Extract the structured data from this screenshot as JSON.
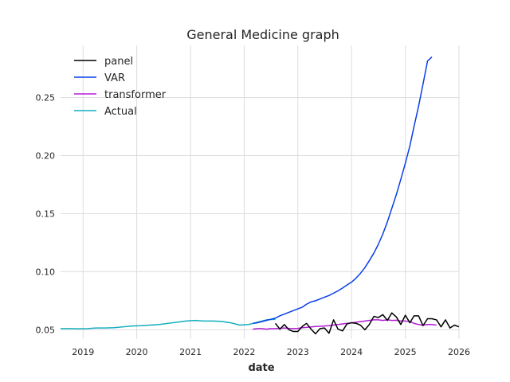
{
  "chart_data": {
    "type": "line",
    "title": "General Medicine graph",
    "xlabel": "date",
    "ylabel": "",
    "xlim": [
      "2018-08-01",
      "2026-01-01"
    ],
    "ylim": [
      0.042,
      0.295
    ],
    "x_ticks": [
      {
        "date": "2019-01-01",
        "label": "2019"
      },
      {
        "date": "2020-01-01",
        "label": "2020"
      },
      {
        "date": "2021-01-01",
        "label": "2021"
      },
      {
        "date": "2022-01-01",
        "label": "2022"
      },
      {
        "date": "2023-01-01",
        "label": "2023"
      },
      {
        "date": "2024-01-01",
        "label": "2024"
      },
      {
        "date": "2025-01-01",
        "label": "2025"
      },
      {
        "date": "2026-01-01",
        "label": "2026"
      }
    ],
    "y_ticks": [
      {
        "value": 0.05,
        "label": "0.05"
      },
      {
        "value": 0.1,
        "label": "0.10"
      },
      {
        "value": 0.15,
        "label": "0.15"
      },
      {
        "value": 0.2,
        "label": "0.20"
      },
      {
        "value": 0.25,
        "label": "0.25"
      }
    ],
    "grid": true,
    "legend_position": "top-left",
    "series": [
      {
        "name": "panel",
        "color": "#000000",
        "points": [
          [
            "2022-08",
            0.0555
          ],
          [
            "2022-09",
            0.0505
          ],
          [
            "2022-10",
            0.0545
          ],
          [
            "2022-11",
            0.05
          ],
          [
            "2022-12",
            0.0485
          ],
          [
            "2023-01",
            0.0485
          ],
          [
            "2023-02",
            0.053
          ],
          [
            "2023-03",
            0.0555
          ],
          [
            "2023-04",
            0.0505
          ],
          [
            "2023-05",
            0.0465
          ],
          [
            "2023-06",
            0.051
          ],
          [
            "2023-07",
            0.0515
          ],
          [
            "2023-08",
            0.047
          ],
          [
            "2023-09",
            0.0585
          ],
          [
            "2023-10",
            0.0505
          ],
          [
            "2023-11",
            0.049
          ],
          [
            "2023-12",
            0.055
          ],
          [
            "2024-01",
            0.056
          ],
          [
            "2024-02",
            0.0555
          ],
          [
            "2024-03",
            0.054
          ],
          [
            "2024-04",
            0.05
          ],
          [
            "2024-05",
            0.0545
          ],
          [
            "2024-06",
            0.0615
          ],
          [
            "2024-07",
            0.0605
          ],
          [
            "2024-08",
            0.063
          ],
          [
            "2024-09",
            0.058
          ],
          [
            "2024-10",
            0.0645
          ],
          [
            "2024-11",
            0.061
          ],
          [
            "2024-12",
            0.0545
          ],
          [
            "2025-01",
            0.0625
          ],
          [
            "2025-02",
            0.056
          ],
          [
            "2025-03",
            0.062
          ],
          [
            "2025-04",
            0.062
          ],
          [
            "2025-05",
            0.0535
          ],
          [
            "2025-06",
            0.0595
          ],
          [
            "2025-07",
            0.0595
          ],
          [
            "2025-08",
            0.0585
          ],
          [
            "2025-09",
            0.0525
          ],
          [
            "2025-10",
            0.0585
          ],
          [
            "2025-11",
            0.0515
          ],
          [
            "2025-12",
            0.054
          ],
          [
            "2026-01",
            0.0525
          ]
        ]
      },
      {
        "name": "VAR",
        "color": "#0a3ee8",
        "points": [
          [
            "2022-03",
            0.0555
          ],
          [
            "2022-04",
            0.056
          ],
          [
            "2022-05",
            0.057
          ],
          [
            "2022-06",
            0.058
          ],
          [
            "2022-07",
            0.059
          ],
          [
            "2022-08",
            0.06
          ],
          [
            "2022-09",
            0.062
          ],
          [
            "2022-10",
            0.0635
          ],
          [
            "2022-11",
            0.065
          ],
          [
            "2022-12",
            0.0665
          ],
          [
            "2023-01",
            0.068
          ],
          [
            "2023-02",
            0.0695
          ],
          [
            "2023-03",
            0.072
          ],
          [
            "2023-04",
            0.074
          ],
          [
            "2023-05",
            0.075
          ],
          [
            "2023-06",
            0.0765
          ],
          [
            "2023-07",
            0.078
          ],
          [
            "2023-08",
            0.0795
          ],
          [
            "2023-09",
            0.0815
          ],
          [
            "2023-10",
            0.0835
          ],
          [
            "2023-11",
            0.086
          ],
          [
            "2023-12",
            0.0885
          ],
          [
            "2024-01",
            0.091
          ],
          [
            "2024-02",
            0.0945
          ],
          [
            "2024-03",
            0.0985
          ],
          [
            "2024-04",
            0.1035
          ],
          [
            "2024-05",
            0.1095
          ],
          [
            "2024-06",
            0.116
          ],
          [
            "2024-07",
            0.1235
          ],
          [
            "2024-08",
            0.1325
          ],
          [
            "2024-09",
            0.143
          ],
          [
            "2024-10",
            0.1545
          ],
          [
            "2024-11",
            0.1665
          ],
          [
            "2024-12",
            0.1795
          ],
          [
            "2025-01",
            0.1935
          ],
          [
            "2025-02",
            0.2085
          ],
          [
            "2025-03",
            0.225
          ],
          [
            "2025-04",
            0.2425
          ],
          [
            "2025-05",
            0.2615
          ],
          [
            "2025-06",
            0.2815
          ],
          [
            "2025-07",
            0.285
          ]
        ]
      },
      {
        "name": "transformer",
        "color": "#b51ad6",
        "points": [
          [
            "2022-03",
            0.0505
          ],
          [
            "2022-04",
            0.051
          ],
          [
            "2022-05",
            0.051
          ],
          [
            "2022-06",
            0.0505
          ],
          [
            "2022-07",
            0.051
          ],
          [
            "2022-08",
            0.051
          ],
          [
            "2022-09",
            0.0512
          ],
          [
            "2022-10",
            0.0515
          ],
          [
            "2022-11",
            0.0512
          ],
          [
            "2022-12",
            0.051
          ],
          [
            "2023-01",
            0.0512
          ],
          [
            "2023-02",
            0.0518
          ],
          [
            "2023-03",
            0.052
          ],
          [
            "2023-04",
            0.0525
          ],
          [
            "2023-05",
            0.0528
          ],
          [
            "2023-06",
            0.053
          ],
          [
            "2023-07",
            0.0532
          ],
          [
            "2023-08",
            0.0535
          ],
          [
            "2023-09",
            0.054
          ],
          [
            "2023-10",
            0.0545
          ],
          [
            "2023-11",
            0.055
          ],
          [
            "2023-12",
            0.0555
          ],
          [
            "2024-01",
            0.056
          ],
          [
            "2024-02",
            0.0565
          ],
          [
            "2024-03",
            0.057
          ],
          [
            "2024-04",
            0.0575
          ],
          [
            "2024-05",
            0.058
          ],
          [
            "2024-06",
            0.0585
          ],
          [
            "2024-07",
            0.0585
          ],
          [
            "2024-08",
            0.058
          ],
          [
            "2024-09",
            0.0585
          ],
          [
            "2024-10",
            0.058
          ],
          [
            "2024-11",
            0.0582
          ],
          [
            "2024-12",
            0.0575
          ],
          [
            "2025-01",
            0.0575
          ],
          [
            "2025-02",
            0.057
          ],
          [
            "2025-03",
            0.0555
          ],
          [
            "2025-04",
            0.0545
          ],
          [
            "2025-05",
            0.054
          ],
          [
            "2025-06",
            0.0545
          ],
          [
            "2025-07",
            0.0545
          ],
          [
            "2025-08",
            0.054
          ]
        ]
      },
      {
        "name": "Actual",
        "color": "#11aebd",
        "points": [
          [
            "2018-08",
            0.051
          ],
          [
            "2018-10",
            0.051
          ],
          [
            "2018-12",
            0.0508
          ],
          [
            "2019-02",
            0.051
          ],
          [
            "2019-04",
            0.0515
          ],
          [
            "2019-06",
            0.0515
          ],
          [
            "2019-08",
            0.0518
          ],
          [
            "2019-10",
            0.0525
          ],
          [
            "2019-12",
            0.0532
          ],
          [
            "2020-02",
            0.0535
          ],
          [
            "2020-04",
            0.054
          ],
          [
            "2020-06",
            0.0545
          ],
          [
            "2020-08",
            0.0555
          ],
          [
            "2020-10",
            0.0565
          ],
          [
            "2020-12",
            0.0575
          ],
          [
            "2021-02",
            0.058
          ],
          [
            "2021-04",
            0.0575
          ],
          [
            "2021-06",
            0.0575
          ],
          [
            "2021-08",
            0.0572
          ],
          [
            "2021-10",
            0.056
          ],
          [
            "2021-12",
            0.054
          ],
          [
            "2022-02",
            0.0545
          ],
          [
            "2022-04",
            0.0565
          ],
          [
            "2022-06",
            0.0585
          ],
          [
            "2022-08",
            0.059
          ]
        ]
      }
    ]
  }
}
